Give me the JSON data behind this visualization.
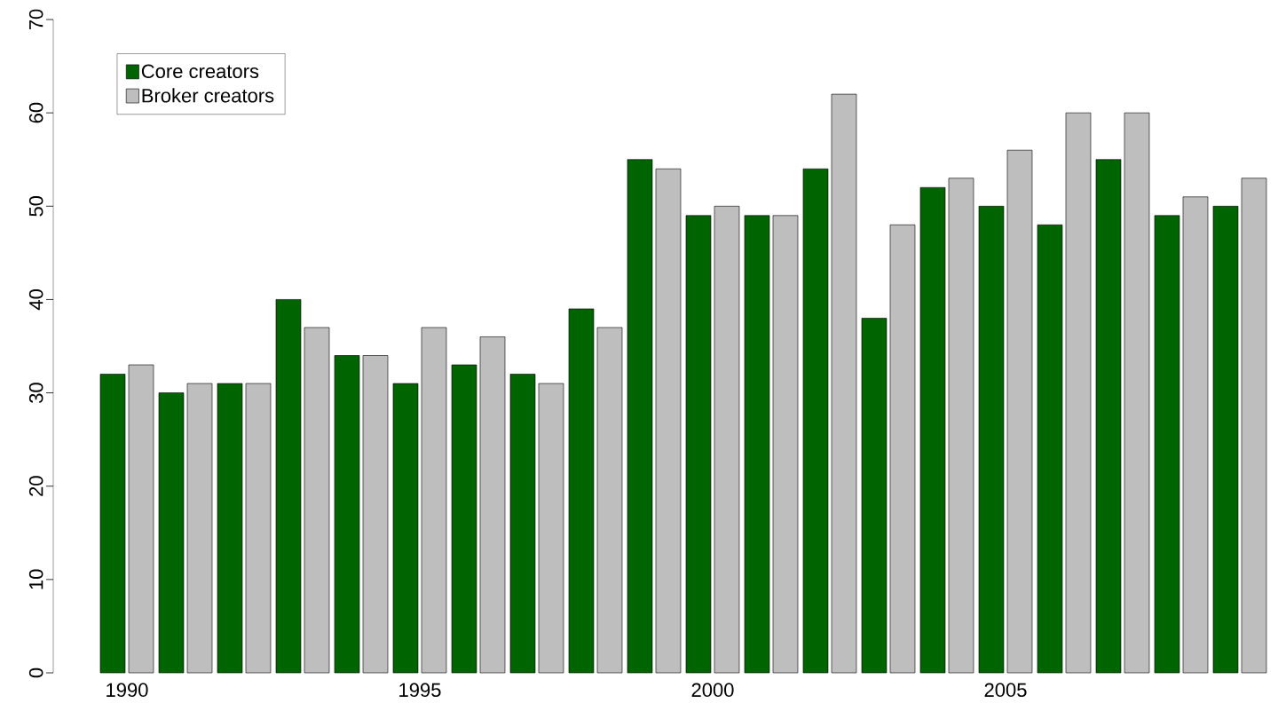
{
  "chart_data": {
    "type": "bar",
    "categories": [
      "1990",
      null,
      null,
      null,
      null,
      "1995",
      null,
      null,
      null,
      null,
      "2000",
      null,
      null,
      null,
      null,
      "2005",
      null,
      null,
      null,
      null
    ],
    "series": [
      {
        "name": "Core creators",
        "color": "#006400",
        "values": [
          32,
          30,
          31,
          40,
          34,
          31,
          33,
          32,
          39,
          55,
          49,
          49,
          54,
          38,
          52,
          50,
          48,
          55,
          49,
          50
        ]
      },
      {
        "name": "Broker creators",
        "color": "#bebebe",
        "values": [
          33,
          31,
          31,
          37,
          34,
          37,
          36,
          31,
          37,
          54,
          50,
          49,
          62,
          48,
          53,
          56,
          60,
          60,
          51,
          53
        ]
      }
    ],
    "ylim": [
      0,
      70
    ],
    "yticks": [
      0,
      10,
      20,
      30,
      40,
      50,
      60,
      70
    ],
    "grid": false,
    "legend": "top left"
  }
}
